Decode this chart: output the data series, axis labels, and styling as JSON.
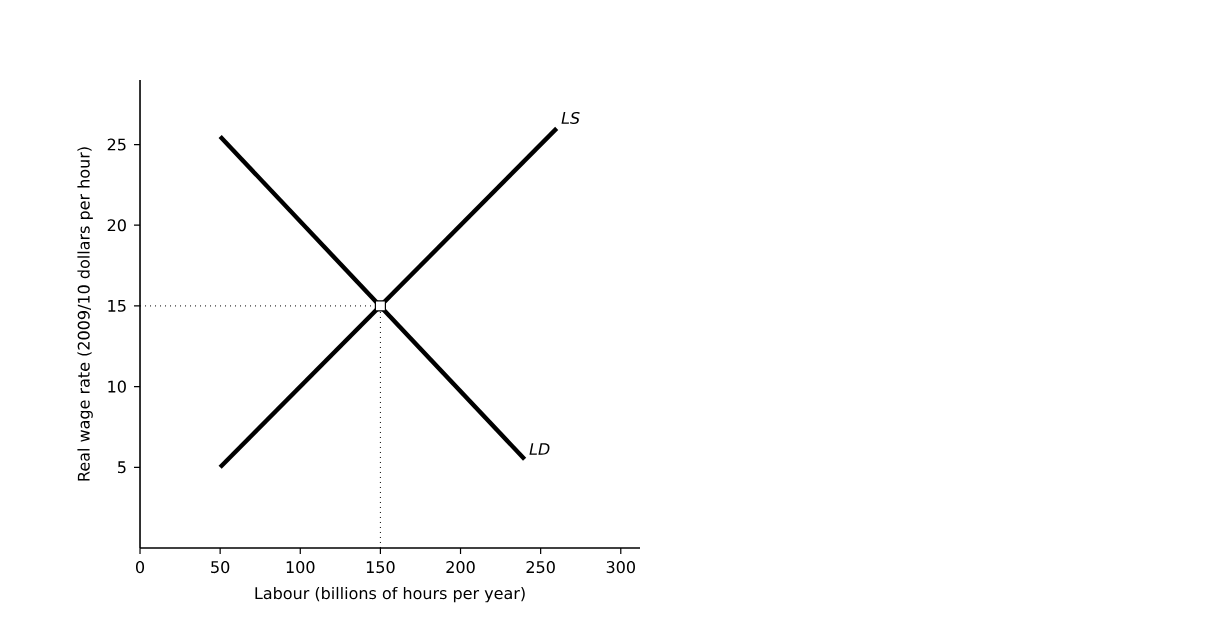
{
  "chart_data": {
    "type": "line",
    "xlabel": "Labour (billions of hours per year)",
    "ylabel": "Real wage rate (2009/10 dollars per hour)",
    "xlim": [
      0,
      312
    ],
    "ylim": [
      0,
      29
    ],
    "xticks": [
      0,
      50,
      100,
      150,
      200,
      250,
      300
    ],
    "yticks": [
      5,
      10,
      15,
      20,
      25
    ],
    "series": [
      {
        "name": "LS",
        "color": "#000000",
        "x": [
          50,
          260
        ],
        "values": [
          5,
          26
        ]
      },
      {
        "name": "LD",
        "color": "#000000",
        "x": [
          50,
          240
        ],
        "values": [
          25.5,
          5.5
        ]
      },
      {
        "color": "#000000",
        "line_style": "dotted",
        "x": [
          0,
          150
        ],
        "values": [
          15,
          15
        ]
      },
      {
        "color": "#000000",
        "line_style": "dotted",
        "x": [
          150,
          150
        ],
        "values": [
          0,
          15
        ]
      },
      {
        "type": "scatter",
        "color": "#000000",
        "marker": "square",
        "x": [
          150
        ],
        "values": [
          15
        ]
      }
    ]
  }
}
